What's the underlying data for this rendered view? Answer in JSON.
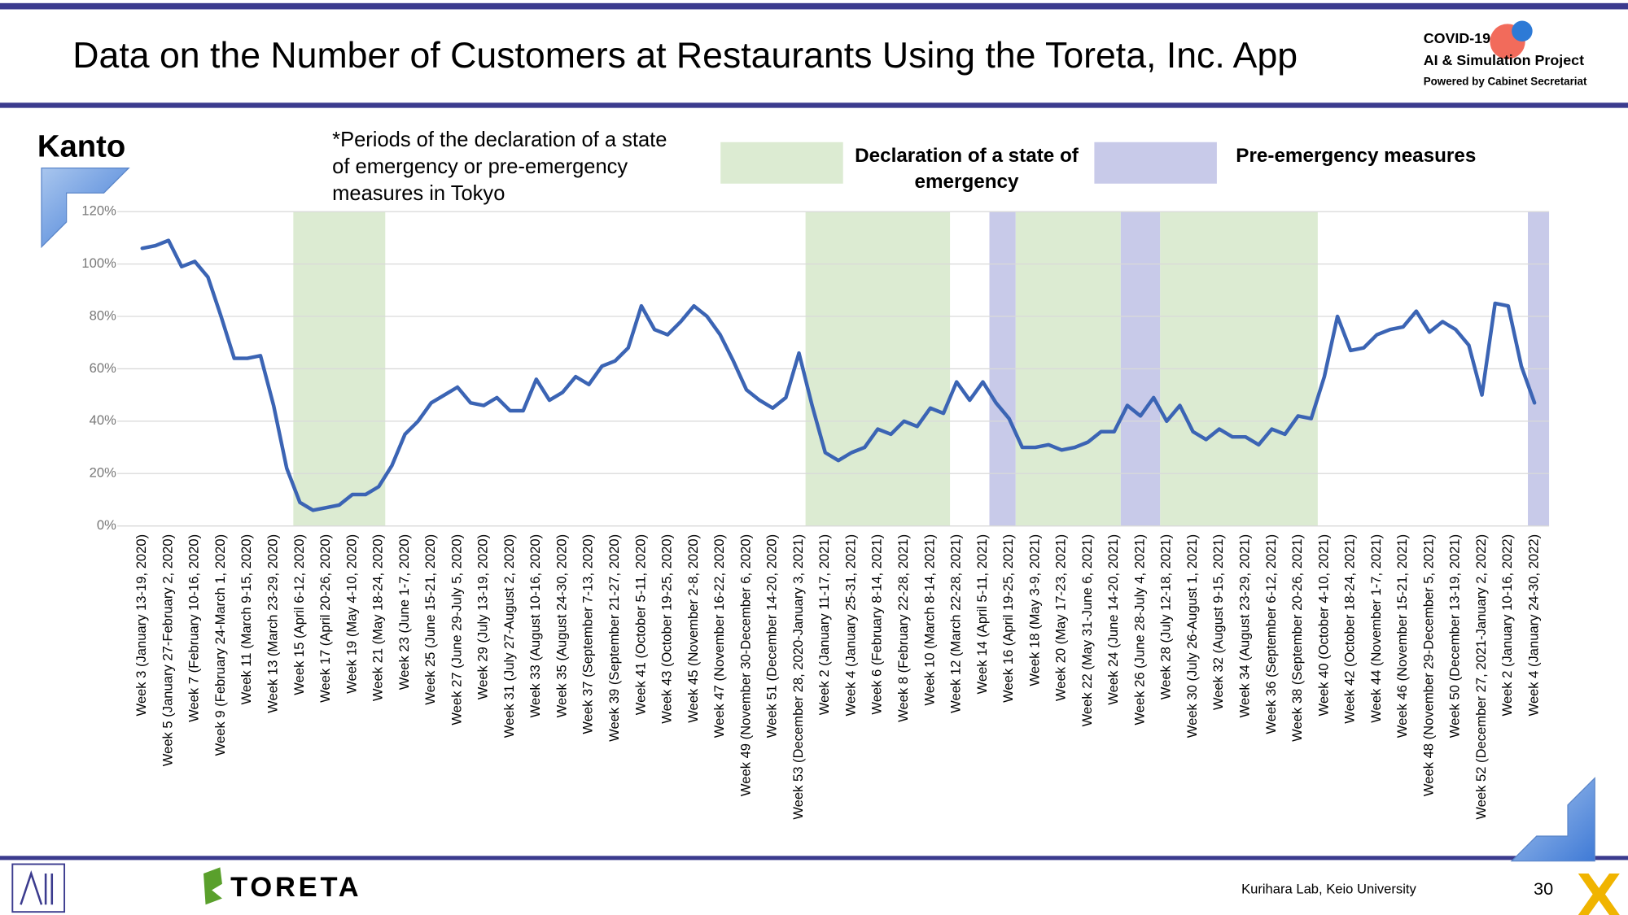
{
  "slide": {
    "title": "Data on the Number of Customers at Restaurants Using the Toreta, Inc. App",
    "logo": {
      "line1": "COVID-19",
      "line2": "AI & Simulation Project",
      "line3": "Powered by Cabinet Secretariat"
    },
    "footer": {
      "brand": "TORETA",
      "credit": "Kurihara Lab, Keio University",
      "page": "30"
    }
  },
  "chart_data": {
    "type": "line",
    "panel": "Kanto",
    "annotation": "*Periods of the declaration of a state of emergency or pre-emergency measures in Tokyo",
    "legend": [
      {
        "label": "Declaration of a state of emergency",
        "color": "#dcebd2"
      },
      {
        "label": "Pre-emergency measures",
        "color": "#c8cae9"
      }
    ],
    "periods": [
      {
        "legend": 0,
        "start": 12,
        "end": 18
      },
      {
        "legend": 0,
        "start": 51,
        "end": 61
      },
      {
        "legend": 1,
        "start": 65,
        "end": 66
      },
      {
        "legend": 0,
        "start": 67,
        "end": 74
      },
      {
        "legend": 1,
        "start": 75,
        "end": 77
      },
      {
        "legend": 0,
        "start": 78,
        "end": 89
      },
      {
        "legend": 1,
        "start": 106,
        "end": 106
      }
    ],
    "categories": [
      "Week 3 (January 13-19, 2020)",
      null,
      "Week 5 (January 27-February 2, 2020)",
      null,
      "Week 7 (February 10-16, 2020)",
      null,
      "Week 9 (February 24-March 1, 2020)",
      null,
      "Week 11 (March 9-15, 2020)",
      null,
      "Week 13 (March 23-29, 2020)",
      null,
      "Week 15 (April 6-12, 2020)",
      null,
      "Week 17 (April 20-26, 2020)",
      null,
      "Week 19 (May 4-10, 2020)",
      null,
      "Week 21 (May 18-24, 2020)",
      null,
      "Week 23 (June 1-7, 2020)",
      null,
      "Week 25 (June 15-21, 2020)",
      null,
      "Week 27 (June 29-July 5, 2020)",
      null,
      "Week 29 (July 13-19, 2020)",
      null,
      "Week 31 (July 27-August 2, 2020)",
      null,
      "Week 33 (August 10-16, 2020)",
      null,
      "Week 35 (August 24-30, 2020)",
      null,
      "Week 37 (September 7-13, 2020)",
      null,
      "Week 39 (September 21-27, 2020)",
      null,
      "Week 41 (October 5-11, 2020)",
      null,
      "Week 43 (October 19-25, 2020)",
      null,
      "Week 45 (November 2-8, 2020)",
      null,
      "Week 47 (November 16-22, 2020)",
      null,
      "Week 49 (November 30-December 6, 2020)",
      null,
      "Week 51 (December 14-20, 2020)",
      null,
      "Week 53 (December 28, 2020-January 3, 2021)",
      null,
      "Week 2 (January 11-17, 2021)",
      null,
      "Week 4 (January 25-31, 2021)",
      null,
      "Week 6 (February 8-14, 2021)",
      null,
      "Week 8 (February 22-28, 2021)",
      null,
      "Week 10 (March 8-14, 2021)",
      null,
      "Week 12 (March 22-28, 2021)",
      null,
      "Week 14 (April 5-11, 2021)",
      null,
      "Week 16 (April 19-25, 2021)",
      null,
      "Week 18 (May 3-9, 2021)",
      null,
      "Week 20 (May 17-23, 2021)",
      null,
      "Week 22 (May 31-June 6, 2021)",
      null,
      "Week 24 (June 14-20, 2021)",
      null,
      "Week 26 (June 28-July 4, 2021)",
      null,
      "Week 28 (July 12-18, 2021)",
      null,
      "Week 30 (July 26-August 1, 2021)",
      null,
      "Week 32 (August 9-15, 2021)",
      null,
      "Week 34 (August 23-29, 2021)",
      null,
      "Week 36 (September 6-12, 2021)",
      null,
      "Week 38 (September 20-26, 2021)",
      null,
      "Week 40 (October 4-10, 2021)",
      null,
      "Week 42 (October 18-24, 2021)",
      null,
      "Week 44 (November 1-7, 2021)",
      null,
      "Week 46 (November 15-21, 2021)",
      null,
      "Week 48 (November 29-December 5, 2021)",
      null,
      "Week 50 (December 13-19, 2021)",
      null,
      "Week 52 (December 27, 2021-January 2, 2022)",
      null,
      "Week 2 (January 10-16, 2022)",
      null,
      "Week 4 (January 24-30, 2022)"
    ],
    "series": [
      {
        "name": "Kanto",
        "color": "#3b64b4",
        "values": [
          106,
          107,
          109,
          99,
          101,
          95,
          80,
          64,
          64,
          65,
          46,
          22,
          9,
          6,
          7,
          8,
          12,
          12,
          15,
          23,
          35,
          40,
          47,
          50,
          53,
          47,
          46,
          49,
          44,
          44,
          56,
          48,
          51,
          57,
          54,
          61,
          63,
          68,
          84,
          75,
          73,
          78,
          84,
          80,
          73,
          63,
          52,
          48,
          45,
          49,
          66,
          46,
          28,
          25,
          28,
          30,
          37,
          35,
          40,
          38,
          45,
          43,
          55,
          48,
          55,
          47,
          41,
          30,
          30,
          31,
          29,
          30,
          32,
          36,
          36,
          46,
          42,
          49,
          40,
          46,
          36,
          33,
          37,
          34,
          34,
          31,
          37,
          35,
          42,
          41,
          57,
          80,
          67,
          68,
          73,
          75,
          76,
          82,
          74,
          78,
          75,
          69,
          50,
          85,
          84,
          61,
          47
        ]
      }
    ],
    "ylim": [
      0,
      120
    ],
    "yticks": [
      {
        "value": 0,
        "label": "0%"
      },
      {
        "value": 20,
        "label": "20%"
      },
      {
        "value": 40,
        "label": "40%"
      },
      {
        "value": 60,
        "label": "60%"
      },
      {
        "value": 80,
        "label": "80%"
      },
      {
        "value": 100,
        "label": "100%"
      },
      {
        "value": 120,
        "label": "120%"
      }
    ],
    "grid": true
  }
}
